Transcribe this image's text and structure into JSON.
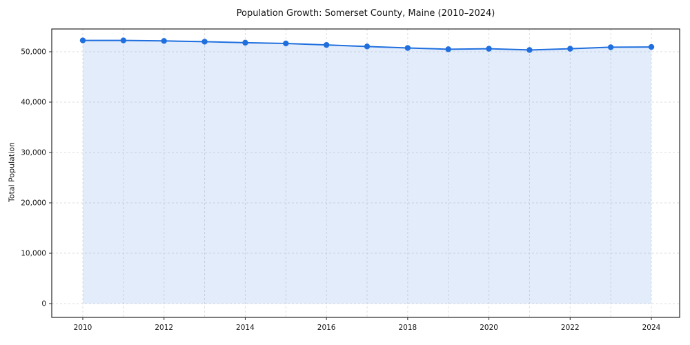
{
  "chart_data": {
    "type": "line",
    "title": "Population Growth: Somerset County, Maine (2010–2024)",
    "xlabel": "",
    "ylabel": "Total Population",
    "x": [
      2010,
      2011,
      2012,
      2013,
      2014,
      2015,
      2016,
      2017,
      2018,
      2019,
      2020,
      2021,
      2022,
      2023,
      2024
    ],
    "series": [
      {
        "name": "Total Population",
        "values": [
          52250,
          52250,
          52150,
          52000,
          51800,
          51650,
          51350,
          51050,
          50750,
          50500,
          50600,
          50350,
          50600,
          50900,
          50950
        ]
      }
    ],
    "xticks": [
      2010,
      2012,
      2014,
      2016,
      2018,
      2020,
      2022,
      2024
    ],
    "xtick_labels": [
      "2010",
      "2012",
      "2014",
      "2016",
      "2018",
      "2020",
      "2022",
      "2024"
    ],
    "yticks": [
      0,
      10000,
      20000,
      30000,
      40000,
      50000
    ],
    "ytick_labels": [
      "0",
      "10,000",
      "20,000",
      "30,000",
      "40,000",
      "50,000"
    ],
    "ylim": [
      0,
      54500
    ],
    "xlim": [
      2009.25,
      2024.7
    ],
    "grid": true,
    "legend": "none",
    "marker": "circle",
    "line_color": "#1f6fde",
    "fill_opacity": 0.13,
    "grid_color": "#dedede",
    "axis_color": "#262626"
  }
}
